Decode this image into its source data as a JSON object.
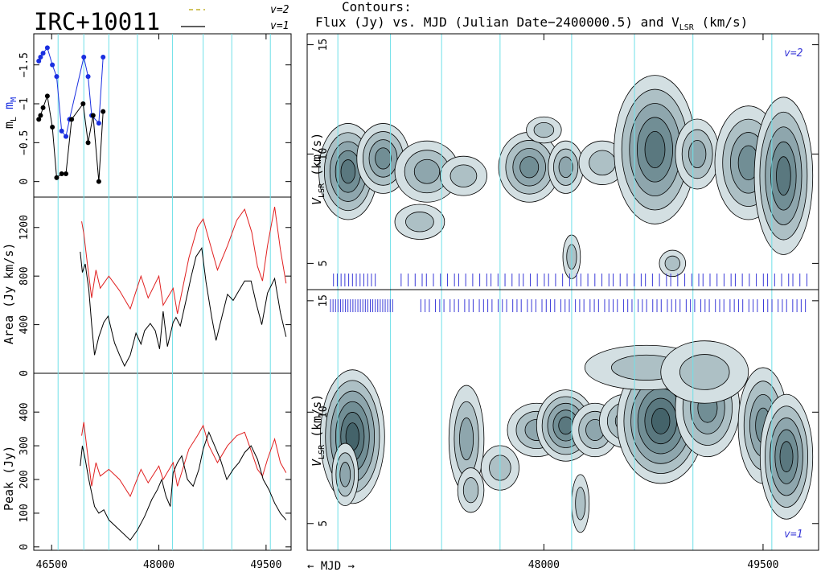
{
  "header": {
    "source": "IRC+10011",
    "legend": [
      {
        "label": "v=2",
        "color": "#b8a000",
        "dash": true
      },
      {
        "label": "v=1",
        "color": "#000000",
        "dash": false
      }
    ],
    "contours_line1": "Contours:",
    "contours_line2": "Flux (Jy) vs. MJD (Julian  Date−2400000.5) and V",
    "contours_sub": "LSR",
    "contours_unit": " (km/s)"
  },
  "colors": {
    "v2_curve": "#e02020",
    "v1_curve": "#000000",
    "optical_M": "#1a2fe0",
    "optical_L": "#000000",
    "epoch_lines": "#6fe0e8",
    "obs_ticks": "#3a3ad8",
    "contour_fill_levels": [
      "#d3dfe2",
      "#adc0c5",
      "#8ea6ad",
      "#718e95",
      "#5a787f",
      "#44636a"
    ]
  },
  "vertical_epochs_mjd": [
    46590,
    46950,
    47300,
    47700,
    48190,
    48620,
    49020,
    49560
  ],
  "chart_data": [
    {
      "id": "optical",
      "type": "line",
      "ylabel": "m",
      "ylabel_subs": [
        "L",
        "M"
      ],
      "ylim": [
        0.2,
        -1.9
      ],
      "yticks": [
        0,
        -0.5,
        -1,
        -1.5
      ],
      "ytick_labels": [
        "0",
        "−0.5",
        "−1",
        "−1.5"
      ],
      "series": [
        {
          "name": "M",
          "x": [
            46320,
            46345,
            46380,
            46440,
            46510,
            46570,
            46640,
            46700,
            46750,
            46950,
            47010,
            47060,
            47160,
            47220
          ],
          "y": [
            -1.55,
            -1.6,
            -1.65,
            -1.72,
            -1.5,
            -1.35,
            -0.65,
            -0.58,
            -0.8,
            -1.6,
            -1.35,
            -0.85,
            -0.75,
            -1.6
          ]
        },
        {
          "name": "L",
          "x": [
            46320,
            46345,
            46380,
            46440,
            46510,
            46570,
            46640,
            46700,
            46780,
            46940,
            47010,
            47080,
            47160,
            47220
          ],
          "y": [
            -0.8,
            -0.85,
            -0.95,
            -1.1,
            -0.7,
            -0.05,
            -0.1,
            -0.1,
            -0.8,
            -1.0,
            -0.5,
            -0.85,
            0.0,
            -0.9
          ]
        }
      ]
    },
    {
      "id": "area",
      "type": "line",
      "ylabel": "Area (Jy km/s)",
      "ylim": [
        0,
        1450
      ],
      "yticks": [
        0,
        400,
        800,
        1200
      ],
      "ytick_labels": [
        "0",
        "400",
        "800",
        "1200"
      ],
      "series": [
        {
          "name": "v=2",
          "x": [
            46920,
            46950,
            47000,
            47060,
            47120,
            47180,
            47300,
            47450,
            47600,
            47750,
            47850,
            48000,
            48060,
            48200,
            48260,
            48420,
            48540,
            48620,
            48700,
            48820,
            48960,
            49090,
            49200,
            49300,
            49380,
            49450,
            49520,
            49620,
            49700,
            49780
          ],
          "y": [
            1250,
            1150,
            900,
            620,
            850,
            700,
            800,
            680,
            530,
            800,
            620,
            800,
            560,
            700,
            490,
            950,
            1200,
            1270,
            1100,
            850,
            1050,
            1260,
            1350,
            1160,
            880,
            760,
            1050,
            1370,
            1020,
            740
          ]
        },
        {
          "name": "v=1",
          "x": [
            46900,
            46930,
            46970,
            47020,
            47060,
            47100,
            47160,
            47230,
            47290,
            47380,
            47450,
            47520,
            47600,
            47680,
            47750,
            47800,
            47880,
            47950,
            48010,
            48060,
            48120,
            48200,
            48240,
            48300,
            48380,
            48450,
            48520,
            48600,
            48660,
            48740,
            48800,
            48880,
            48960,
            49040,
            49120,
            49200,
            49290,
            49360,
            49440,
            49520,
            49620,
            49700,
            49780
          ],
          "y": [
            1000,
            830,
            900,
            690,
            400,
            150,
            300,
            420,
            470,
            250,
            150,
            60,
            150,
            330,
            240,
            350,
            410,
            350,
            200,
            510,
            220,
            420,
            460,
            390,
            600,
            790,
            960,
            1030,
            750,
            460,
            270,
            460,
            650,
            600,
            680,
            760,
            760,
            580,
            400,
            660,
            780,
            500,
            300
          ]
        }
      ]
    },
    {
      "id": "peak",
      "type": "line",
      "ylabel": "Peak (Jy)",
      "ylim": [
        -10,
        515
      ],
      "yticks": [
        0,
        100,
        200,
        300,
        400
      ],
      "ytick_labels": [
        "0",
        "100",
        "200",
        "300",
        "400"
      ],
      "series": [
        {
          "name": "v=2",
          "x": [
            46920,
            46950,
            47000,
            47060,
            47120,
            47180,
            47300,
            47450,
            47600,
            47750,
            47850,
            48000,
            48060,
            48200,
            48260,
            48420,
            48540,
            48620,
            48700,
            48820,
            48960,
            49090,
            49200,
            49300,
            49380,
            49450,
            49520,
            49620,
            49700,
            49780
          ],
          "y": [
            330,
            370,
            280,
            180,
            250,
            210,
            230,
            200,
            150,
            230,
            190,
            240,
            200,
            250,
            180,
            290,
            330,
            360,
            300,
            250,
            300,
            330,
            340,
            280,
            230,
            210,
            260,
            320,
            250,
            220
          ]
        },
        {
          "name": "v=1",
          "x": [
            46900,
            46930,
            46970,
            47020,
            47060,
            47100,
            47160,
            47230,
            47300,
            47400,
            47500,
            47600,
            47700,
            47800,
            47900,
            47980,
            48040,
            48100,
            48160,
            48200,
            48260,
            48320,
            48400,
            48480,
            48560,
            48620,
            48700,
            48780,
            48860,
            48950,
            49040,
            49120,
            49200,
            49290,
            49380,
            49460,
            49540,
            49620,
            49700,
            49780
          ],
          "y": [
            240,
            300,
            260,
            200,
            160,
            120,
            100,
            110,
            80,
            60,
            40,
            20,
            50,
            90,
            140,
            170,
            200,
            150,
            120,
            220,
            250,
            270,
            200,
            180,
            230,
            290,
            340,
            300,
            260,
            200,
            230,
            250,
            280,
            300,
            260,
            200,
            170,
            130,
            100,
            80
          ]
        }
      ]
    },
    {
      "id": "contours_v2",
      "type": "heatmap",
      "ylabel": "V",
      "ylabel_sub": "LSR",
      "ylabel_unit": " (km/s)",
      "label": "v=2",
      "ylim": [
        3.8,
        15.5
      ],
      "yticks": [
        5,
        10,
        15
      ],
      "ytick_labels": [
        "5",
        "10",
        "15"
      ],
      "x_range": [
        46530,
        49830
      ]
    },
    {
      "id": "contours_v1",
      "type": "heatmap",
      "ylabel": "V",
      "ylabel_sub": "LSR",
      "ylabel_unit": " (km/s)",
      "label": "v=1",
      "ylim": [
        3.8,
        15.5
      ],
      "yticks": [
        5,
        10,
        15
      ],
      "ytick_labels": [
        "5",
        "10",
        "15"
      ],
      "x_range": [
        46530,
        49830
      ]
    }
  ],
  "x_axis_left": {
    "xlim": [
      46250,
      49850
    ],
    "ticks": [
      46500,
      48000,
      49500
    ],
    "tick_labels": [
      "46500",
      "48000",
      "49500"
    ]
  },
  "x_axis_right": {
    "xlim": [
      46380,
      49880
    ],
    "ticks": [
      48000,
      49500
    ],
    "tick_labels": [
      "48000",
      "49500"
    ],
    "label": "← MJD →"
  }
}
